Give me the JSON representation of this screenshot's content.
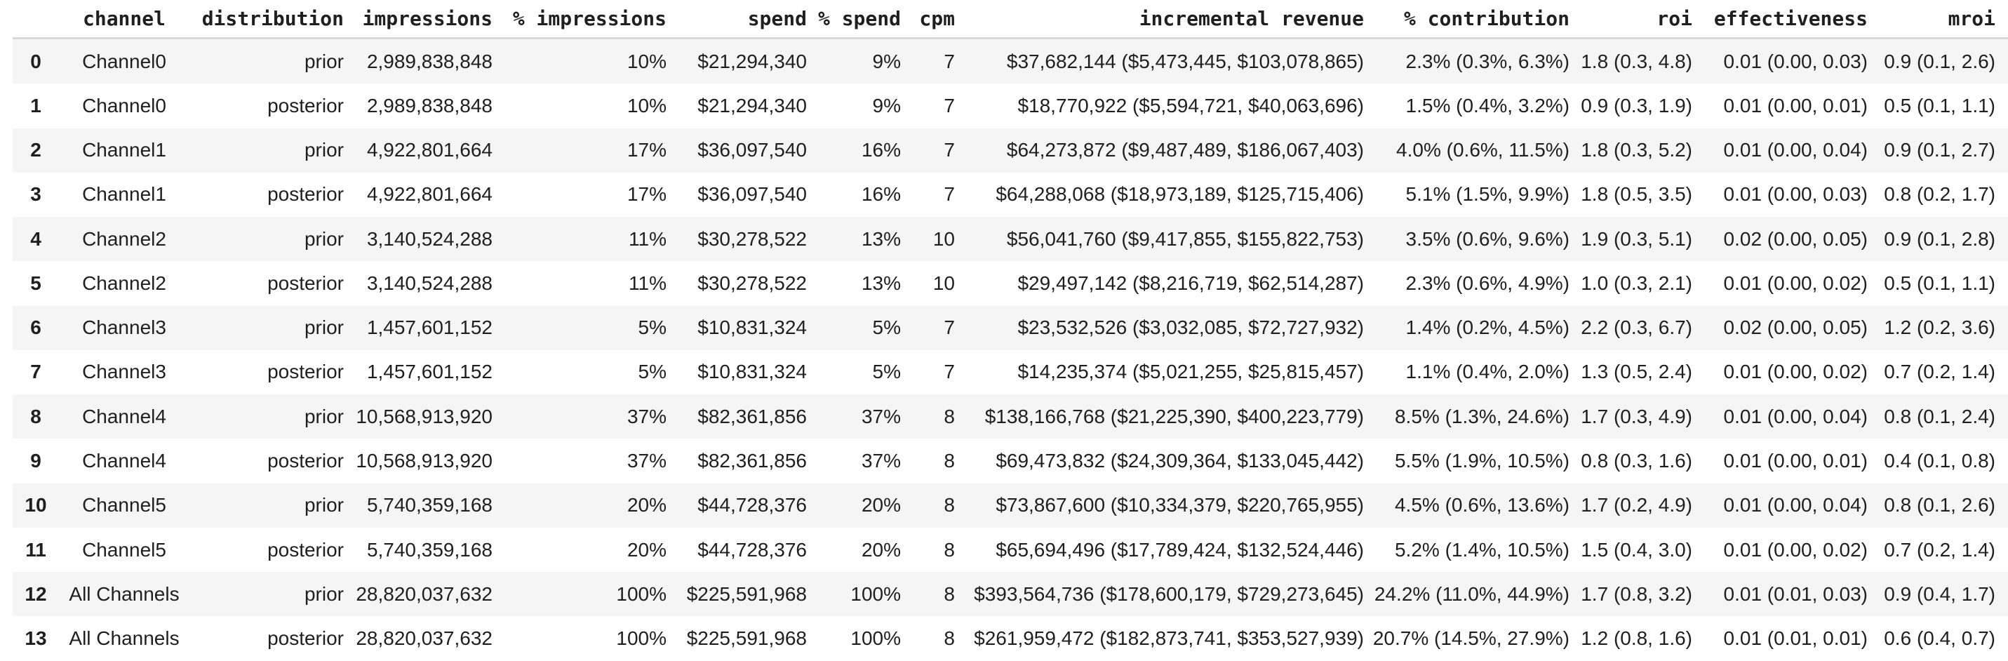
{
  "table": {
    "columns": [
      "channel",
      "distribution",
      "impressions",
      "% impressions",
      "spend",
      "% spend",
      "cpm",
      "incremental revenue",
      "% contribution",
      "roi",
      "effectiveness",
      "mroi"
    ],
    "rows": [
      {
        "index": "0",
        "cells": [
          "Channel0",
          "prior",
          "2,989,838,848",
          "10%",
          "$21,294,340",
          "9%",
          "7",
          "$37,682,144 ($5,473,445, $103,078,865)",
          "2.3% (0.3%, 6.3%)",
          "1.8 (0.3, 4.8)",
          "0.01 (0.00, 0.03)",
          "0.9 (0.1, 2.6)"
        ]
      },
      {
        "index": "1",
        "cells": [
          "Channel0",
          "posterior",
          "2,989,838,848",
          "10%",
          "$21,294,340",
          "9%",
          "7",
          "$18,770,922 ($5,594,721, $40,063,696)",
          "1.5% (0.4%, 3.2%)",
          "0.9 (0.3, 1.9)",
          "0.01 (0.00, 0.01)",
          "0.5 (0.1, 1.1)"
        ]
      },
      {
        "index": "2",
        "cells": [
          "Channel1",
          "prior",
          "4,922,801,664",
          "17%",
          "$36,097,540",
          "16%",
          "7",
          "$64,273,872 ($9,487,489, $186,067,403)",
          "4.0% (0.6%, 11.5%)",
          "1.8 (0.3, 5.2)",
          "0.01 (0.00, 0.04)",
          "0.9 (0.1, 2.7)"
        ]
      },
      {
        "index": "3",
        "cells": [
          "Channel1",
          "posterior",
          "4,922,801,664",
          "17%",
          "$36,097,540",
          "16%",
          "7",
          "$64,288,068 ($18,973,189, $125,715,406)",
          "5.1% (1.5%, 9.9%)",
          "1.8 (0.5, 3.5)",
          "0.01 (0.00, 0.03)",
          "0.8 (0.2, 1.7)"
        ]
      },
      {
        "index": "4",
        "cells": [
          "Channel2",
          "prior",
          "3,140,524,288",
          "11%",
          "$30,278,522",
          "13%",
          "10",
          "$56,041,760 ($9,417,855, $155,822,753)",
          "3.5% (0.6%, 9.6%)",
          "1.9 (0.3, 5.1)",
          "0.02 (0.00, 0.05)",
          "0.9 (0.1, 2.8)"
        ]
      },
      {
        "index": "5",
        "cells": [
          "Channel2",
          "posterior",
          "3,140,524,288",
          "11%",
          "$30,278,522",
          "13%",
          "10",
          "$29,497,142 ($8,216,719, $62,514,287)",
          "2.3% (0.6%, 4.9%)",
          "1.0 (0.3, 2.1)",
          "0.01 (0.00, 0.02)",
          "0.5 (0.1, 1.1)"
        ]
      },
      {
        "index": "6",
        "cells": [
          "Channel3",
          "prior",
          "1,457,601,152",
          "5%",
          "$10,831,324",
          "5%",
          "7",
          "$23,532,526 ($3,032,085, $72,727,932)",
          "1.4% (0.2%, 4.5%)",
          "2.2 (0.3, 6.7)",
          "0.02 (0.00, 0.05)",
          "1.2 (0.2, 3.6)"
        ]
      },
      {
        "index": "7",
        "cells": [
          "Channel3",
          "posterior",
          "1,457,601,152",
          "5%",
          "$10,831,324",
          "5%",
          "7",
          "$14,235,374 ($5,021,255, $25,815,457)",
          "1.1% (0.4%, 2.0%)",
          "1.3 (0.5, 2.4)",
          "0.01 (0.00, 0.02)",
          "0.7 (0.2, 1.4)"
        ]
      },
      {
        "index": "8",
        "cells": [
          "Channel4",
          "prior",
          "10,568,913,920",
          "37%",
          "$82,361,856",
          "37%",
          "8",
          "$138,166,768 ($21,225,390, $400,223,779)",
          "8.5% (1.3%, 24.6%)",
          "1.7 (0.3, 4.9)",
          "0.01 (0.00, 0.04)",
          "0.8 (0.1, 2.4)"
        ]
      },
      {
        "index": "9",
        "cells": [
          "Channel4",
          "posterior",
          "10,568,913,920",
          "37%",
          "$82,361,856",
          "37%",
          "8",
          "$69,473,832 ($24,309,364, $133,045,442)",
          "5.5% (1.9%, 10.5%)",
          "0.8 (0.3, 1.6)",
          "0.01 (0.00, 0.01)",
          "0.4 (0.1, 0.8)"
        ]
      },
      {
        "index": "10",
        "cells": [
          "Channel5",
          "prior",
          "5,740,359,168",
          "20%",
          "$44,728,376",
          "20%",
          "8",
          "$73,867,600 ($10,334,379, $220,765,955)",
          "4.5% (0.6%, 13.6%)",
          "1.7 (0.2, 4.9)",
          "0.01 (0.00, 0.04)",
          "0.8 (0.1, 2.6)"
        ]
      },
      {
        "index": "11",
        "cells": [
          "Channel5",
          "posterior",
          "5,740,359,168",
          "20%",
          "$44,728,376",
          "20%",
          "8",
          "$65,694,496 ($17,789,424, $132,524,446)",
          "5.2% (1.4%, 10.5%)",
          "1.5 (0.4, 3.0)",
          "0.01 (0.00, 0.02)",
          "0.7 (0.2, 1.4)"
        ]
      },
      {
        "index": "12",
        "cells": [
          "All Channels",
          "prior",
          "28,820,037,632",
          "100%",
          "$225,591,968",
          "100%",
          "8",
          "$393,564,736 ($178,600,179, $729,273,645)",
          "24.2% (11.0%, 44.9%)",
          "1.7 (0.8, 3.2)",
          "0.01 (0.01, 0.03)",
          "0.9 (0.4, 1.7)"
        ]
      },
      {
        "index": "13",
        "cells": [
          "All Channels",
          "posterior",
          "28,820,037,632",
          "100%",
          "$225,591,968",
          "100%",
          "8",
          "$261,959,472 ($182,873,741, $353,527,939)",
          "20.7% (14.5%, 27.9%)",
          "1.2 (0.8, 1.6)",
          "0.01 (0.01, 0.01)",
          "0.6 (0.4, 0.7)"
        ]
      }
    ]
  },
  "colors": {
    "text": "#1f1f1f",
    "row_stripe": "#f5f5f5",
    "header_divider": "#d8d8d8",
    "background": "#ffffff"
  }
}
